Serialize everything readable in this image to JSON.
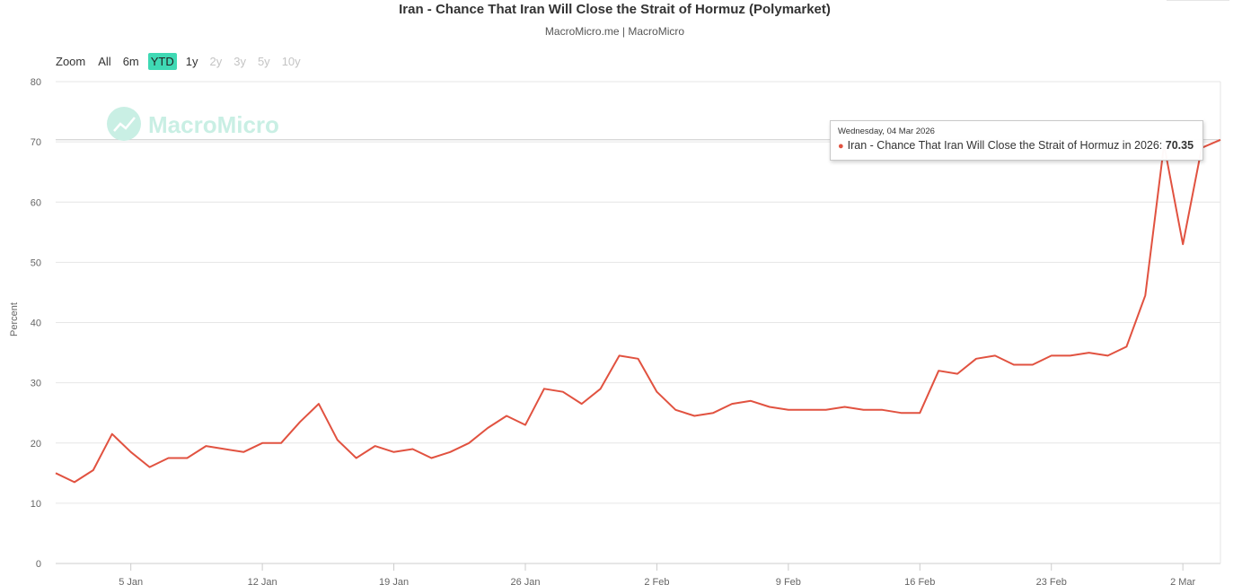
{
  "header": {
    "title": "Iran - Chance That Iran Will Close the Strait of Hormuz (Polymarket)",
    "subtitle": "MacroMicro.me | MacroMicro"
  },
  "zoom": {
    "label": "Zoom",
    "buttons": [
      {
        "label": "All",
        "state": "enabled"
      },
      {
        "label": "6m",
        "state": "enabled"
      },
      {
        "label": "YTD",
        "state": "active"
      },
      {
        "label": "1y",
        "state": "enabled"
      },
      {
        "label": "2y",
        "state": "disabled"
      },
      {
        "label": "3y",
        "state": "disabled"
      },
      {
        "label": "5y",
        "state": "disabled"
      },
      {
        "label": "10y",
        "state": "disabled"
      }
    ]
  },
  "watermark": {
    "text": "MacroMicro",
    "icon": "chart-line-icon",
    "color": "#c9efe4"
  },
  "tooltip": {
    "date": "Wednesday, 04 Mar 2026",
    "series_label": "Iran - Chance That Iran Will Close the Strait of Hormuz in 2026:",
    "value": "70.35"
  },
  "chart_data": {
    "type": "line",
    "title": "Iran - Chance That Iran Will Close the Strait of Hormuz (Polymarket)",
    "ylabel": "Percent",
    "xlabel": "",
    "ylim": [
      0,
      80
    ],
    "y_ticks": [
      0,
      10,
      20,
      30,
      40,
      50,
      60,
      70,
      80
    ],
    "x_ticks": [
      {
        "label": "5 Jan",
        "day": 5
      },
      {
        "label": "12 Jan",
        "day": 12
      },
      {
        "label": "19 Jan",
        "day": 19
      },
      {
        "label": "26 Jan",
        "day": 26
      },
      {
        "label": "2 Feb",
        "day": 33
      },
      {
        "label": "9 Feb",
        "day": 40
      },
      {
        "label": "16 Feb",
        "day": 47
      },
      {
        "label": "23 Feb",
        "day": 54
      },
      {
        "label": "2 Mar",
        "day": 61
      }
    ],
    "x_range_days": [
      1,
      63
    ],
    "grid": true,
    "line_color": "#e15240",
    "series": [
      {
        "name": "Iran - Chance That Iran Will Close the Strait of Hormuz in 2026",
        "x": [
          1,
          2,
          3,
          4,
          5,
          6,
          7,
          8,
          9,
          10,
          11,
          12,
          13,
          14,
          15,
          16,
          17,
          18,
          19,
          20,
          21,
          22,
          23,
          24,
          25,
          26,
          27,
          28,
          29,
          30,
          31,
          32,
          33,
          34,
          35,
          36,
          37,
          38,
          39,
          40,
          41,
          42,
          43,
          44,
          45,
          46,
          47,
          48,
          49,
          50,
          51,
          52,
          53,
          54,
          55,
          56,
          57,
          58,
          59,
          60,
          61,
          62,
          63
        ],
        "values": [
          15,
          13.5,
          15.5,
          21.5,
          18.5,
          16,
          17.5,
          17.5,
          19.5,
          19,
          18.5,
          20,
          20,
          23.5,
          26.5,
          20.5,
          17.5,
          19.5,
          18.5,
          19,
          17.5,
          18.5,
          20,
          22.5,
          24.5,
          23,
          29,
          28.5,
          26.5,
          29,
          34.5,
          34,
          28.5,
          25.5,
          24.5,
          25,
          26.5,
          27,
          26,
          25.5,
          25.5,
          25.5,
          26,
          25.5,
          25.5,
          25,
          25,
          32,
          31.5,
          34,
          34.5,
          33,
          33,
          34.5,
          34.5,
          35,
          34.5,
          36,
          44.5,
          69.5,
          53,
          69,
          70.35
        ]
      }
    ]
  }
}
